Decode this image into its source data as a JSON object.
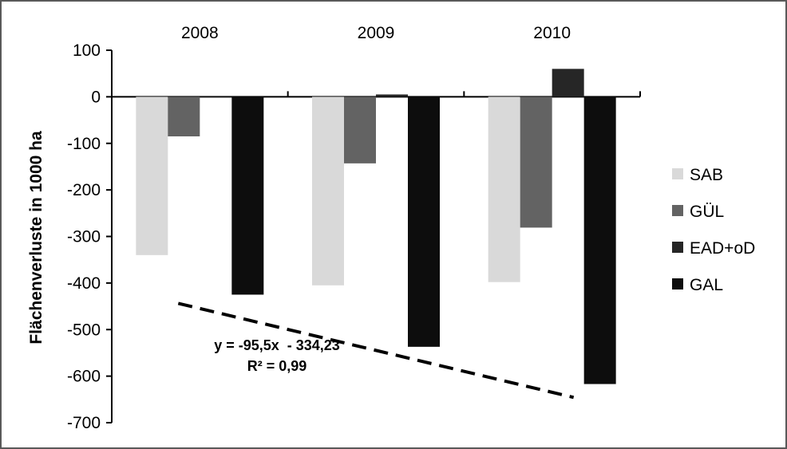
{
  "chart_data": {
    "type": "bar",
    "title": "",
    "xlabel": "",
    "ylabel": "Flächenverluste in 1000 ha",
    "categories": [
      "2008",
      "2009",
      "2010"
    ],
    "series": [
      {
        "name": "SAB",
        "values": [
          -340,
          -405,
          -398
        ],
        "color": "#d9d9d9"
      },
      {
        "name": "GÜL",
        "values": [
          -85,
          -143,
          -281
        ],
        "color": "#636363"
      },
      {
        "name": "EAD+oD",
        "values": [
          0,
          5,
          60
        ],
        "color": "#262626"
      },
      {
        "name": "GAL",
        "values": [
          -425,
          -537,
          -617
        ],
        "color": "#0d0d0d"
      }
    ],
    "ylim": [
      -700,
      100
    ],
    "yticks": [
      100,
      0,
      -100,
      -200,
      -300,
      -400,
      -500,
      -600,
      -700
    ],
    "ytick_labels": [
      "100",
      "0",
      "-100",
      "-200",
      "-300",
      "-400",
      "-500",
      "-600",
      "-700"
    ],
    "grid": false,
    "legend_position": "right",
    "trendline": {
      "style": "dashed",
      "x_start": "2008",
      "x_end": "2010",
      "y_start": -430,
      "y_end": -620,
      "equation": "y = -95,5x  - 334,23",
      "r_squared": "R² = 0,99"
    }
  }
}
